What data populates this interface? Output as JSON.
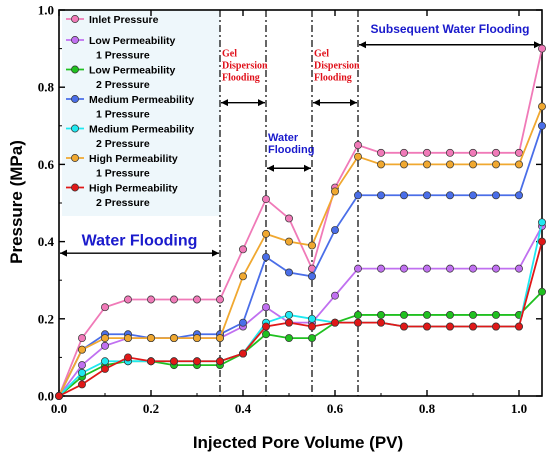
{
  "chart_data": {
    "type": "line",
    "xlabel": "Injected Pore Volume (PV)",
    "ylabel": "Pressure (MPa)",
    "xlim": [
      0,
      1.05
    ],
    "ylim": [
      0,
      1.0
    ],
    "x_ticks": [
      "0.0",
      "0.2",
      "0.4",
      "0.6",
      "0.8",
      "1.0"
    ],
    "y_ticks": [
      "0.0",
      "0.2",
      "0.4",
      "0.6",
      "0.8",
      "1.0"
    ],
    "legend_position": "top-left",
    "grid": false,
    "x": [
      0,
      0.05,
      0.1,
      0.15,
      0.2,
      0.25,
      0.3,
      0.35,
      0.4,
      0.45,
      0.5,
      0.55,
      0.6,
      0.65,
      0.7,
      0.75,
      0.8,
      0.85,
      0.9,
      0.95,
      1.0,
      1.05
    ],
    "series": [
      {
        "name": [
          "Inlet Pressure"
        ],
        "color": "#f07ab8",
        "values": [
          0,
          0.15,
          0.23,
          0.25,
          0.25,
          0.25,
          0.25,
          0.25,
          0.38,
          0.51,
          0.46,
          0.33,
          0.54,
          0.65,
          0.63,
          0.63,
          0.63,
          0.63,
          0.63,
          0.63,
          0.63,
          0.9
        ]
      },
      {
        "name": [
          "Low Permeability",
          "1 Pressure"
        ],
        "color": "#c070f0",
        "values": [
          0,
          0.08,
          0.13,
          0.15,
          0.15,
          0.15,
          0.15,
          0.15,
          0.18,
          0.23,
          0.19,
          0.19,
          0.26,
          0.33,
          0.33,
          0.33,
          0.33,
          0.33,
          0.33,
          0.33,
          0.33,
          0.44
        ]
      },
      {
        "name": [
          "Low Permeability",
          "2 Pressure"
        ],
        "color": "#20c020",
        "values": [
          0,
          0.05,
          0.08,
          0.09,
          0.09,
          0.08,
          0.08,
          0.08,
          0.11,
          0.16,
          0.15,
          0.15,
          0.19,
          0.21,
          0.21,
          0.21,
          0.21,
          0.21,
          0.21,
          0.21,
          0.21,
          0.27
        ]
      },
      {
        "name": [
          "Medium Permeability",
          "1 Pressure"
        ],
        "color": "#4a6ee8",
        "values": [
          0,
          0.12,
          0.16,
          0.16,
          0.15,
          0.15,
          0.16,
          0.16,
          0.19,
          0.36,
          0.32,
          0.31,
          0.43,
          0.52,
          0.52,
          0.52,
          0.52,
          0.52,
          0.52,
          0.52,
          0.52,
          0.7
        ]
      },
      {
        "name": [
          "Medium Permeability",
          "2 Pressure"
        ],
        "color": "#1fe8f0",
        "values": [
          0,
          0.06,
          0.09,
          0.09,
          0.09,
          0.09,
          0.09,
          0.09,
          0.11,
          0.19,
          0.21,
          0.2,
          0.19,
          0.19,
          0.19,
          0.18,
          0.18,
          0.18,
          0.18,
          0.18,
          0.18,
          0.45
        ]
      },
      {
        "name": [
          "High Permeability",
          "1 Pressure"
        ],
        "color": "#f0a830",
        "values": [
          0,
          0.12,
          0.15,
          0.15,
          0.15,
          0.15,
          0.15,
          0.15,
          0.31,
          0.42,
          0.4,
          0.39,
          0.53,
          0.62,
          0.6,
          0.6,
          0.6,
          0.6,
          0.6,
          0.6,
          0.6,
          0.75
        ]
      },
      {
        "name": [
          "High Permeability",
          "2 Pressure"
        ],
        "color": "#e01818",
        "values": [
          0,
          0.03,
          0.07,
          0.1,
          0.09,
          0.09,
          0.09,
          0.09,
          0.11,
          0.18,
          0.19,
          0.18,
          0.19,
          0.19,
          0.19,
          0.18,
          0.18,
          0.18,
          0.18,
          0.18,
          0.18,
          0.4
        ]
      }
    ],
    "phase_boundaries": [
      0.35,
      0.45,
      0.55,
      0.65
    ],
    "phase_labels": [
      {
        "lines": [
          "Water Flooding"
        ],
        "from": 0,
        "to": 0.35,
        "y": 0.37,
        "text_y": 0.39,
        "style": "blue-large"
      },
      {
        "lines": [
          "Gel",
          "Dispersion",
          "Flooding"
        ],
        "from": 0.35,
        "to": 0.45,
        "y": 0.76,
        "text_y": 0.88,
        "style": "red"
      },
      {
        "lines": [
          "Water",
          "Flooding"
        ],
        "from": 0.45,
        "to": 0.55,
        "y": 0.59,
        "text_y": 0.66,
        "style": "blue-small"
      },
      {
        "lines": [
          "Gel",
          "Dispersion",
          "Flooding"
        ],
        "from": 0.55,
        "to": 0.65,
        "y": 0.76,
        "text_y": 0.88,
        "style": "red"
      },
      {
        "lines": [
          "Subsequent Water Flooding"
        ],
        "from": 0.65,
        "to": 1.05,
        "y": 0.91,
        "text_y": 0.94,
        "style": "blue-medium"
      }
    ]
  }
}
